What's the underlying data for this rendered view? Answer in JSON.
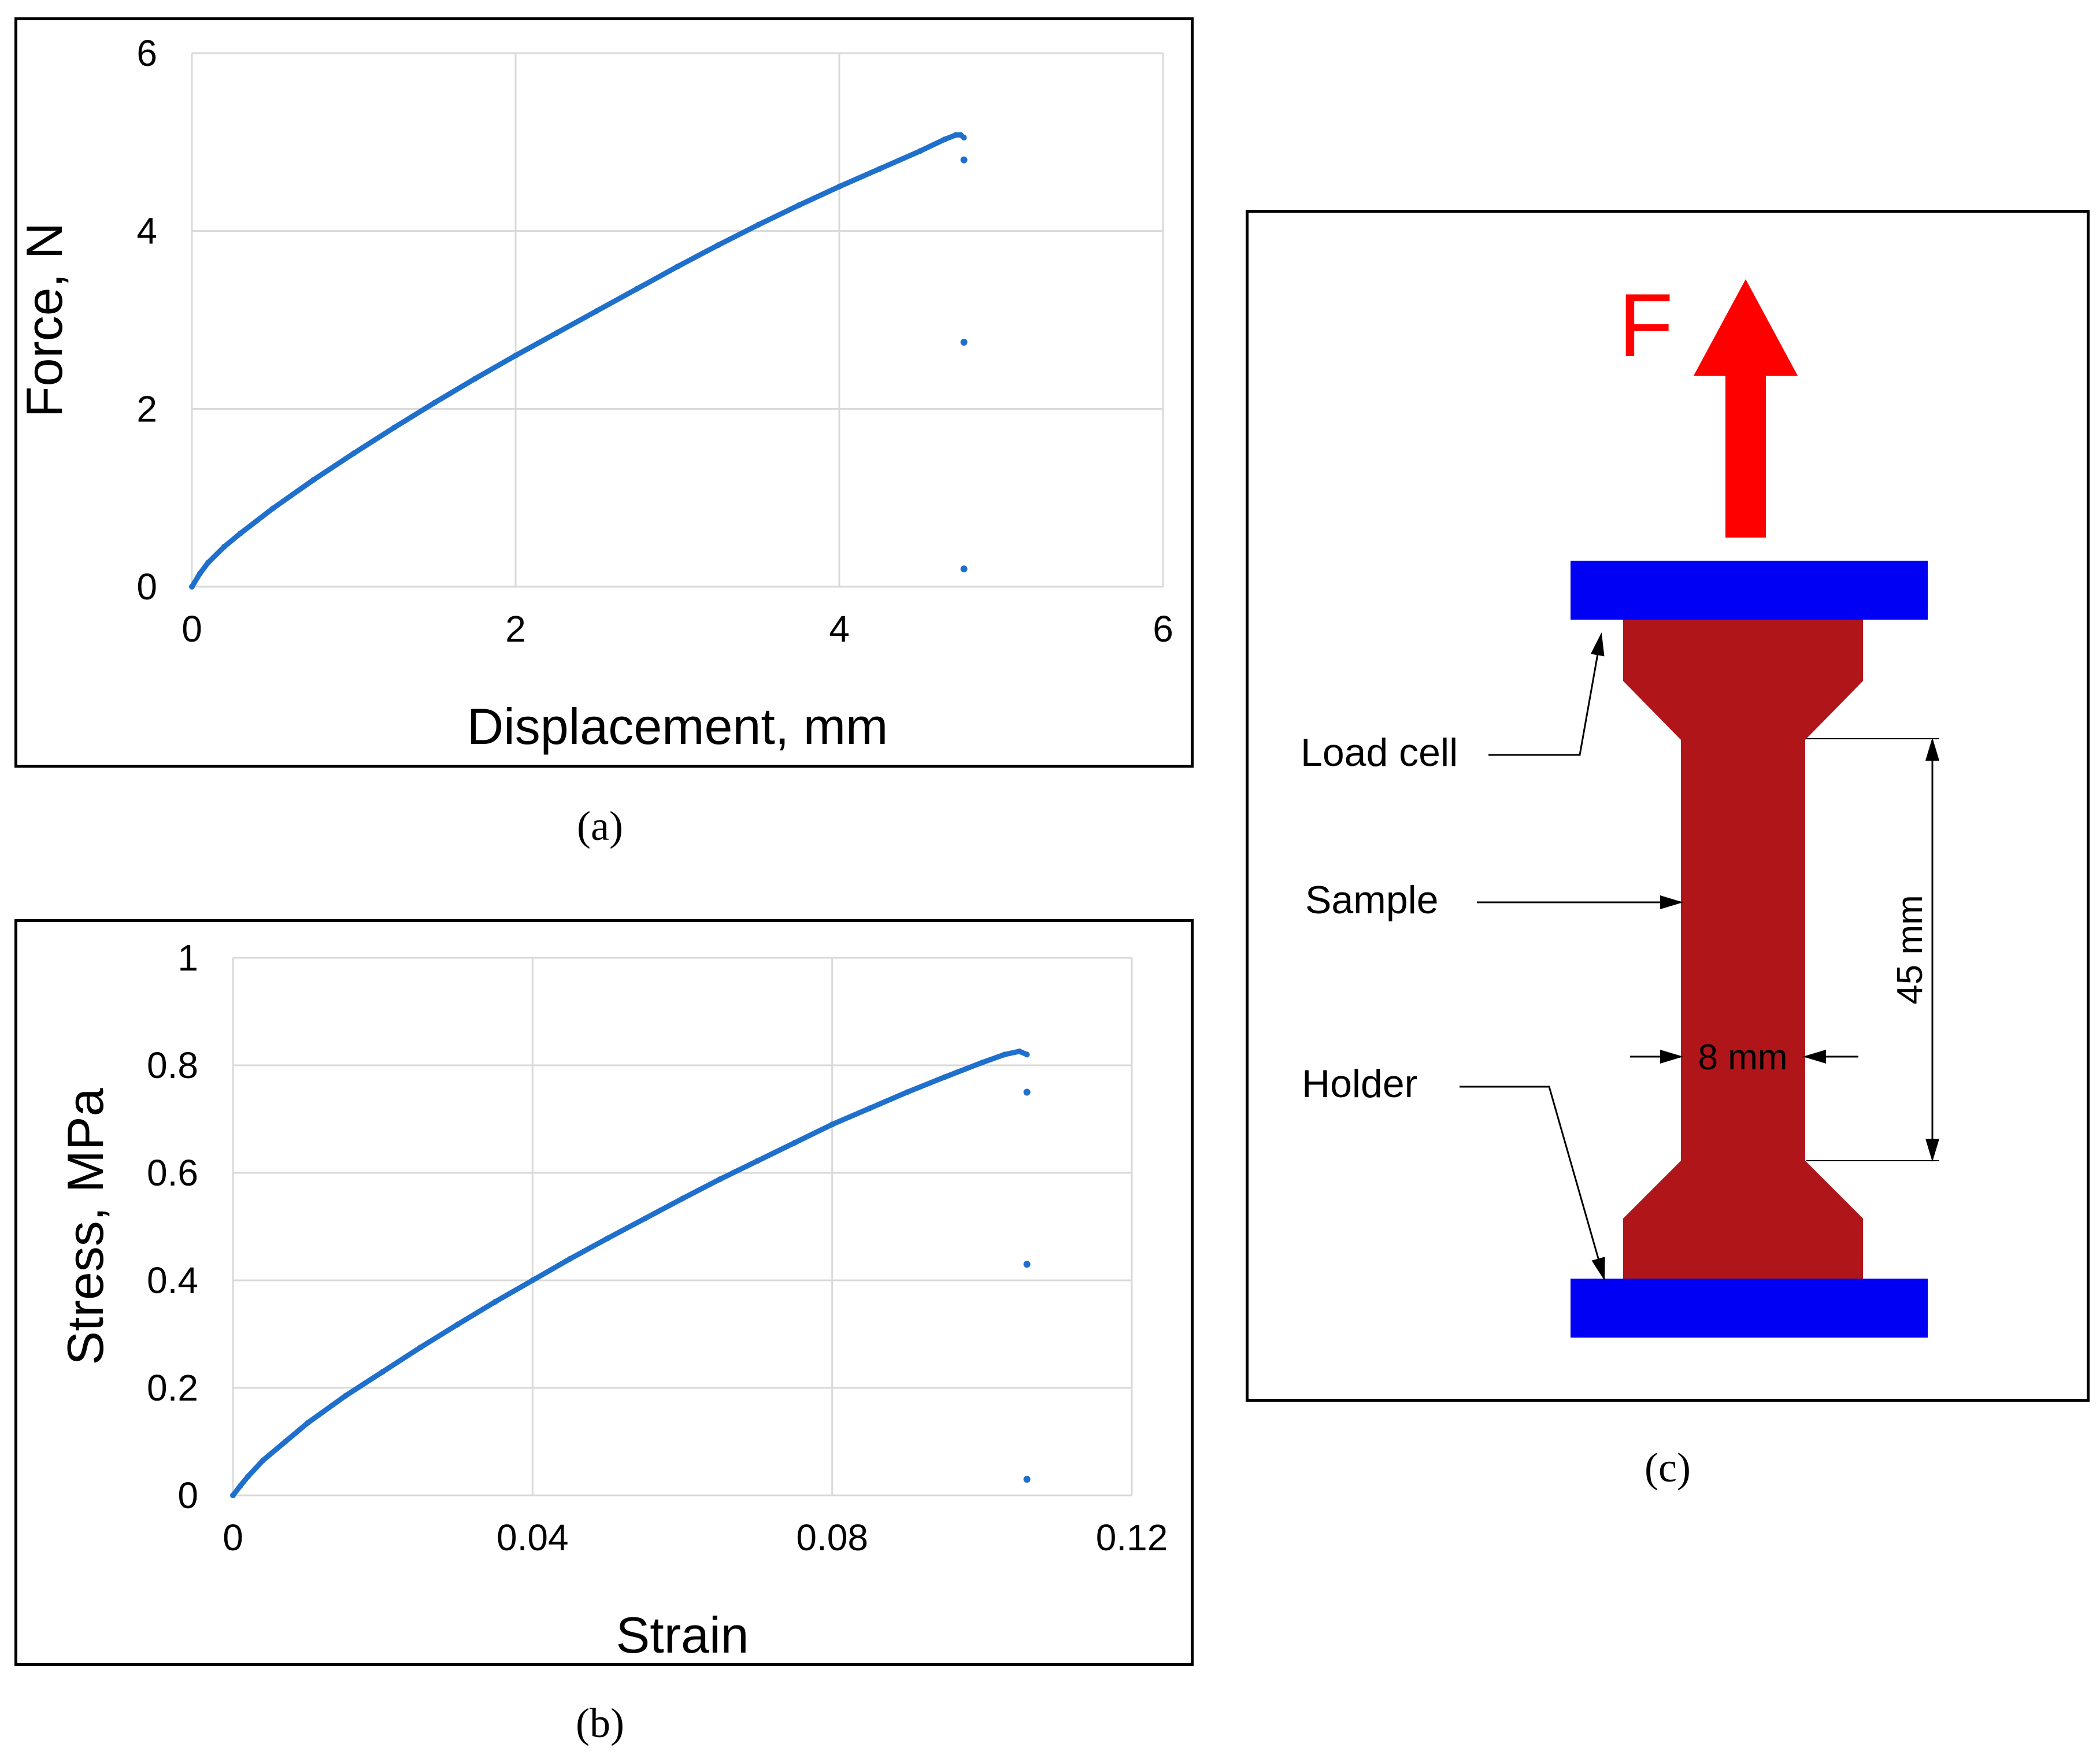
{
  "colors": {
    "series": "#1f6fcc",
    "grid": "#d9d9d9",
    "sample": "#b0151a",
    "holder": "#0000f5",
    "force_arrow": "#ff0000"
  },
  "chart_data": [
    {
      "type": "scatter",
      "xlabel": "Displacement, mm",
      "ylabel": "Force, N",
      "xlim": [
        0,
        6
      ],
      "ylim": [
        0,
        6
      ],
      "x_ticks": [
        "0",
        "2",
        "4",
        "6"
      ],
      "y_ticks": [
        "0",
        "2",
        "4",
        "6"
      ],
      "grid": true,
      "series": [
        {
          "x": [
            0,
            0.05,
            0.1,
            0.2,
            0.3,
            0.5,
            0.75,
            1.0,
            1.25,
            1.5,
            1.75,
            2.0,
            2.25,
            2.5,
            2.75,
            3.0,
            3.25,
            3.5,
            3.75,
            4.0,
            4.25,
            4.5,
            4.65,
            4.72,
            4.75,
            4.77,
            4.77,
            4.77,
            4.77
          ],
          "y": [
            0,
            0.15,
            0.27,
            0.45,
            0.6,
            0.88,
            1.2,
            1.5,
            1.79,
            2.07,
            2.34,
            2.6,
            2.85,
            3.1,
            3.35,
            3.6,
            3.84,
            4.07,
            4.29,
            4.5,
            4.7,
            4.9,
            5.03,
            5.08,
            5.08,
            5.05,
            4.8,
            2.75,
            0.2
          ]
        }
      ]
    },
    {
      "type": "scatter",
      "xlabel": "Strain",
      "ylabel": "Stress, MPa",
      "xlim": [
        0,
        0.12
      ],
      "ylim": [
        0,
        1
      ],
      "x_ticks": [
        "0",
        "0.04",
        "0.08",
        "0.12"
      ],
      "y_ticks": [
        "0",
        "0.2",
        "0.4",
        "0.6",
        "0.8",
        "1"
      ],
      "grid": true,
      "series": [
        {
          "x": [
            0,
            0.001,
            0.002,
            0.004,
            0.007,
            0.01,
            0.015,
            0.02,
            0.025,
            0.03,
            0.035,
            0.04,
            0.045,
            0.05,
            0.055,
            0.06,
            0.065,
            0.07,
            0.075,
            0.08,
            0.085,
            0.09,
            0.095,
            0.1,
            0.103,
            0.105,
            0.106,
            0.106,
            0.106,
            0.106
          ],
          "y": [
            0,
            0.018,
            0.035,
            0.065,
            0.1,
            0.135,
            0.185,
            0.23,
            0.275,
            0.318,
            0.36,
            0.4,
            0.44,
            0.478,
            0.515,
            0.552,
            0.588,
            0.622,
            0.656,
            0.69,
            0.72,
            0.75,
            0.778,
            0.805,
            0.82,
            0.826,
            0.82,
            0.75,
            0.43,
            0.03
          ]
        }
      ]
    }
  ],
  "captions": {
    "a": "(a)",
    "b": "(b)",
    "c": "(c)"
  },
  "diagram": {
    "force_label": "F",
    "load_cell": "Load cell",
    "sample": "Sample",
    "holder": "Holder",
    "gauge_length": "45 mm",
    "width": "8 mm"
  }
}
